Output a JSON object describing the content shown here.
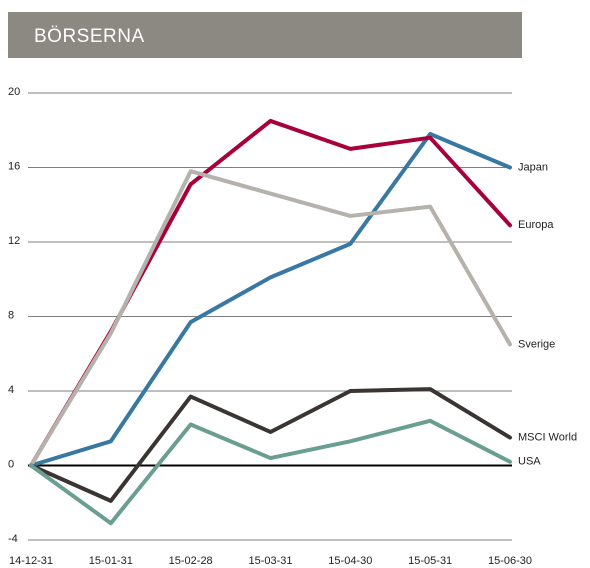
{
  "chart_data": {
    "type": "line",
    "title": "BÖRSERNA",
    "categories": [
      "14-12-31",
      "15-01-31",
      "15-02-28",
      "15-03-31",
      "15-04-30",
      "15-05-31",
      "15-06-30"
    ],
    "series": [
      {
        "name": "Japan",
        "color": "#3a78a4",
        "values": [
          0,
          1.3,
          7.7,
          10.1,
          11.9,
          17.8,
          16.0
        ]
      },
      {
        "name": "Europa",
        "color": "#a8003a",
        "values": [
          0,
          7.2,
          15.1,
          18.5,
          17.0,
          17.6,
          12.9
        ]
      },
      {
        "name": "Sverige",
        "color": "#b5b1ab",
        "values": [
          0,
          7.1,
          15.8,
          14.6,
          13.4,
          13.9,
          6.5
        ]
      },
      {
        "name": "MSCI World",
        "color": "#3a3533",
        "values": [
          0,
          -1.9,
          3.7,
          1.8,
          4.0,
          4.1,
          1.5
        ]
      },
      {
        "name": "USA",
        "color": "#6a9e90",
        "values": [
          0,
          -3.1,
          2.2,
          0.4,
          1.3,
          2.4,
          0.2
        ]
      }
    ],
    "ylim": [
      -4,
      20
    ],
    "yticks": [
      -4,
      0,
      4,
      8,
      12,
      16,
      20
    ],
    "grid": true
  }
}
